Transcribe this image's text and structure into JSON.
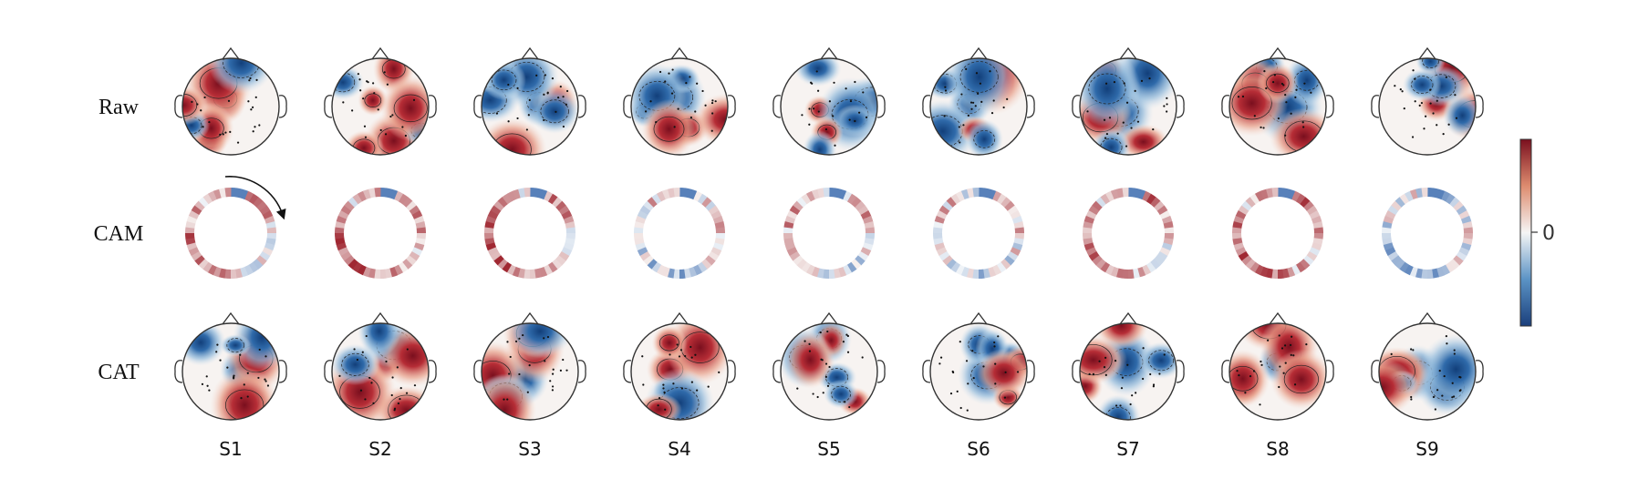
{
  "rows": [
    {
      "label": "Raw",
      "kind": "topomap"
    },
    {
      "label": "CAM",
      "kind": "ring"
    },
    {
      "label": "CAT",
      "kind": "topomap"
    }
  ],
  "subjects": [
    "S1",
    "S2",
    "S3",
    "S4",
    "S5",
    "S6",
    "S7",
    "S8",
    "S9"
  ],
  "colorbar": {
    "tick_label": "0",
    "colormap": "RdBu_r",
    "low_color": "#2a5d9e",
    "mid_color": "#f6f6f6",
    "high_color": "#9b1c28"
  },
  "annotation": {
    "arrow": "clockwise-arrow-on-first-ring"
  },
  "colors": {
    "outline": "#333333",
    "contour": "#222222",
    "text": "#111111"
  }
}
